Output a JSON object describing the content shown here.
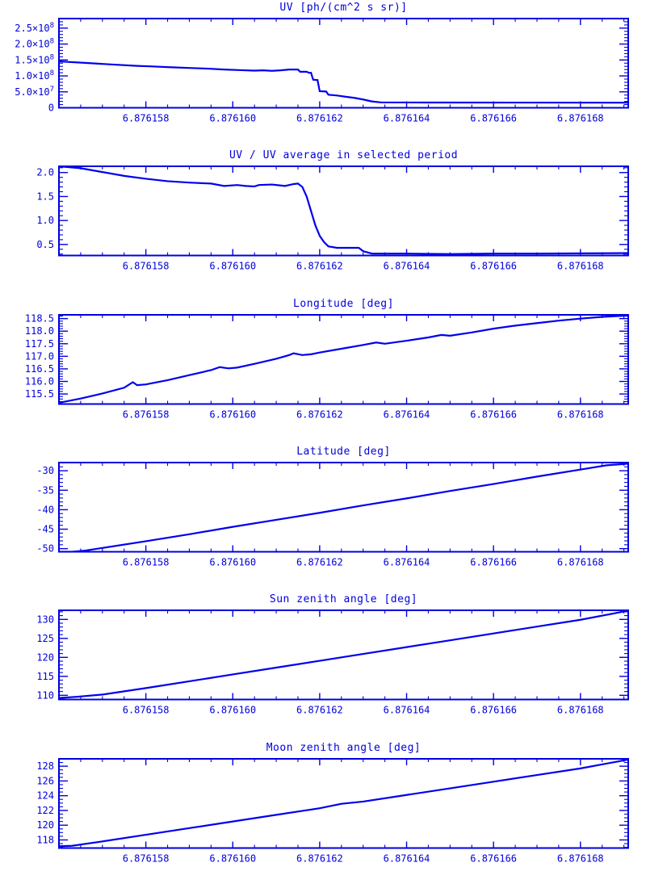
{
  "page": {
    "background": "#ffffff"
  },
  "colors": {
    "axis": "#0000dd",
    "line": "#0000ee",
    "text": "#0000dd"
  },
  "chart_data": [
    {
      "type": "line",
      "title": "UV [ph/(cm^2 s sr)]",
      "x_range": [
        6.876156,
        6.8761691
      ],
      "y_range": [
        0,
        280000000
      ],
      "x_ticks": {
        "values": [
          6.876158,
          6.87616,
          6.876162,
          6.876164,
          6.876166,
          6.876168
        ],
        "labels": [
          "6.876158",
          "6.876160",
          "6.876162",
          "6.876164",
          "6.876166",
          "6.876168"
        ],
        "minor_step": 5e-07
      },
      "y_ticks": {
        "values": [
          0,
          50000000.0,
          100000000.0,
          150000000.0,
          200000000.0,
          250000000.0
        ],
        "labels": [
          "0",
          "5.0×10^7",
          "1.0×10^8",
          "1.5×10^8",
          "2.0×10^8",
          "2.5×10^8"
        ],
        "minor_step": 10000000.0
      },
      "points": [
        [
          6.876156,
          145500000.0
        ],
        [
          6.8761566,
          141000000.0
        ],
        [
          6.8761572,
          136000000.0
        ],
        [
          6.8761578,
          131500000.0
        ],
        [
          6.8761581,
          130000000.0
        ],
        [
          6.8761586,
          127000000.0
        ],
        [
          6.876159,
          125000000.0
        ],
        [
          6.8761594,
          123000000.0
        ],
        [
          6.8761598,
          120000000.0
        ],
        [
          6.8761602,
          118000000.0
        ],
        [
          6.8761605,
          116500000.0
        ],
        [
          6.8761607,
          117500000.0
        ],
        [
          6.8761609,
          116000000.0
        ],
        [
          6.8761611,
          117500000.0
        ],
        [
          6.8761613,
          120000000.0
        ],
        [
          6.8761615,
          120000000.0
        ],
        [
          6.87616155,
          113000000.0
        ],
        [
          6.8761617,
          113000000.0
        ],
        [
          6.87616175,
          110000000.0
        ],
        [
          6.8761618,
          110000000.0
        ],
        [
          6.87616185,
          88000000.0
        ],
        [
          6.87616195,
          87000000.0
        ],
        [
          6.876162,
          52000000.0
        ],
        [
          6.87616215,
          51000000.0
        ],
        [
          6.8761622,
          41000000.0
        ],
        [
          6.8761624,
          38500000.0
        ],
        [
          6.8761626,
          34500000.0
        ],
        [
          6.8761628,
          31000000.0
        ],
        [
          6.876163,
          26000000.0
        ],
        [
          6.8761632,
          20000000.0
        ],
        [
          6.8761634,
          17000000.0
        ],
        [
          6.8761645,
          16500000.0
        ],
        [
          6.8761691,
          16000000.0
        ]
      ]
    },
    {
      "type": "line",
      "title": "UV / UV average in selected period",
      "x_range": [
        6.876156,
        6.8761691
      ],
      "y_range": [
        0.27,
        2.13
      ],
      "x_ticks": {
        "values": [
          6.876158,
          6.87616,
          6.876162,
          6.876164,
          6.876166,
          6.876168
        ],
        "labels": [
          "6.876158",
          "6.876160",
          "6.876162",
          "6.876164",
          "6.876166",
          "6.876168"
        ],
        "minor_step": 5e-07
      },
      "y_ticks": {
        "values": [
          0.5,
          1.0,
          1.5,
          2.0
        ],
        "labels": [
          "0.5",
          "1.0",
          "1.5",
          "2.0"
        ],
        "minor_step": 0.1
      },
      "points": [
        [
          6.876156,
          2.13
        ],
        [
          6.8761565,
          2.09
        ],
        [
          6.876157,
          2.01
        ],
        [
          6.8761575,
          1.93
        ],
        [
          6.876158,
          1.87
        ],
        [
          6.8761585,
          1.82
        ],
        [
          6.876159,
          1.79
        ],
        [
          6.8761595,
          1.77
        ],
        [
          6.8761598,
          1.72
        ],
        [
          6.8761601,
          1.74
        ],
        [
          6.8761603,
          1.72
        ],
        [
          6.8761605,
          1.71
        ],
        [
          6.8761606,
          1.74
        ],
        [
          6.8761609,
          1.75
        ],
        [
          6.8761611,
          1.73
        ],
        [
          6.8761612,
          1.72
        ],
        [
          6.8761613,
          1.74
        ],
        [
          6.8761614,
          1.76
        ],
        [
          6.8761615,
          1.77
        ],
        [
          6.8761616,
          1.7
        ],
        [
          6.8761617,
          1.5
        ],
        [
          6.8761618,
          1.2
        ],
        [
          6.8761619,
          0.9
        ],
        [
          6.876162,
          0.68
        ],
        [
          6.8761621,
          0.55
        ],
        [
          6.8761622,
          0.46
        ],
        [
          6.8761624,
          0.43
        ],
        [
          6.8761629,
          0.43
        ],
        [
          6.876163,
          0.36
        ],
        [
          6.8761632,
          0.31
        ],
        [
          6.876164,
          0.31
        ],
        [
          6.876165,
          0.3
        ],
        [
          6.876166,
          0.31
        ],
        [
          6.876167,
          0.31
        ],
        [
          6.8761691,
          0.32
        ]
      ]
    },
    {
      "type": "line",
      "title": "Longitude [deg]",
      "x_range": [
        6.876156,
        6.8761691
      ],
      "y_range": [
        115.1,
        118.65
      ],
      "x_ticks": {
        "values": [
          6.876158,
          6.87616,
          6.876162,
          6.876164,
          6.876166,
          6.876168
        ],
        "labels": [
          "6.876158",
          "6.876160",
          "6.876162",
          "6.876164",
          "6.876166",
          "6.876168"
        ],
        "minor_step": 5e-07
      },
      "y_ticks": {
        "values": [
          115.5,
          116.0,
          116.5,
          117.0,
          117.5,
          118.0,
          118.5
        ],
        "labels": [
          "115.5",
          "116.0",
          "116.5",
          "117.0",
          "117.5",
          "118.0",
          "118.5"
        ],
        "minor_step": 0.1
      },
      "points": [
        [
          6.876156,
          115.15
        ],
        [
          6.8761565,
          115.32
        ],
        [
          6.876157,
          115.52
        ],
        [
          6.8761575,
          115.75
        ],
        [
          6.8761577,
          115.97
        ],
        [
          6.8761578,
          115.85
        ],
        [
          6.876158,
          115.88
        ],
        [
          6.8761585,
          116.05
        ],
        [
          6.876159,
          116.25
        ],
        [
          6.8761595,
          116.45
        ],
        [
          6.8761597,
          116.57
        ],
        [
          6.8761599,
          116.52
        ],
        [
          6.8761601,
          116.55
        ],
        [
          6.8761605,
          116.7
        ],
        [
          6.876161,
          116.9
        ],
        [
          6.8761613,
          117.05
        ],
        [
          6.8761614,
          117.12
        ],
        [
          6.8761616,
          117.05
        ],
        [
          6.8761618,
          117.08
        ],
        [
          6.876162,
          117.15
        ],
        [
          6.8761625,
          117.3
        ],
        [
          6.876163,
          117.45
        ],
        [
          6.8761633,
          117.55
        ],
        [
          6.8761635,
          117.5
        ],
        [
          6.876164,
          117.62
        ],
        [
          6.8761645,
          117.75
        ],
        [
          6.8761648,
          117.85
        ],
        [
          6.876165,
          117.82
        ],
        [
          6.8761655,
          117.95
        ],
        [
          6.876166,
          118.1
        ],
        [
          6.8761665,
          118.22
        ],
        [
          6.876167,
          118.32
        ],
        [
          6.8761675,
          118.42
        ],
        [
          6.876168,
          118.5
        ],
        [
          6.8761685,
          118.57
        ],
        [
          6.8761691,
          118.62
        ]
      ]
    },
    {
      "type": "line",
      "title": "Latitude [deg]",
      "x_range": [
        6.876156,
        6.8761691
      ],
      "y_range": [
        -50.8,
        -27.9
      ],
      "x_ticks": {
        "values": [
          6.876158,
          6.87616,
          6.876162,
          6.876164,
          6.876166,
          6.876168
        ],
        "labels": [
          "6.876158",
          "6.876160",
          "6.876162",
          "6.876164",
          "6.876166",
          "6.876168"
        ],
        "minor_step": 5e-07
      },
      "y_ticks": {
        "values": [
          -50,
          -45,
          -40,
          -35,
          -30
        ],
        "labels": [
          "-50",
          "-45",
          "-40",
          "-35",
          "-30"
        ],
        "minor_step": 1
      },
      "points": [
        [
          6.876156,
          -50.8
        ],
        [
          6.8761563,
          -50.8
        ],
        [
          6.8761566,
          -50.5
        ],
        [
          6.876158,
          -48.1
        ],
        [
          6.876159,
          -46.3
        ],
        [
          6.87616,
          -44.4
        ],
        [
          6.876161,
          -42.6
        ],
        [
          6.876162,
          -40.8
        ],
        [
          6.876163,
          -38.9
        ],
        [
          6.876164,
          -37.1
        ],
        [
          6.876165,
          -35.2
        ],
        [
          6.876166,
          -33.4
        ],
        [
          6.876167,
          -31.5
        ],
        [
          6.876168,
          -29.7
        ],
        [
          6.8761686,
          -28.6
        ],
        [
          6.8761691,
          -28.2
        ]
      ]
    },
    {
      "type": "line",
      "title": "Sun zenith angle [deg]",
      "x_range": [
        6.876156,
        6.8761691
      ],
      "y_range": [
        108.9,
        132.4
      ],
      "x_ticks": {
        "values": [
          6.876158,
          6.87616,
          6.876162,
          6.876164,
          6.876166,
          6.876168
        ],
        "labels": [
          "6.876158",
          "6.876160",
          "6.876162",
          "6.876164",
          "6.876166",
          "6.876168"
        ],
        "minor_step": 5e-07
      },
      "y_ticks": {
        "values": [
          110,
          115,
          120,
          125,
          130
        ],
        "labels": [
          "110",
          "115",
          "120",
          "125",
          "130"
        ],
        "minor_step": 1
      },
      "points": [
        [
          6.876156,
          109.3
        ],
        [
          6.8761564,
          109.6
        ],
        [
          6.876157,
          110.2
        ],
        [
          6.876158,
          111.9
        ],
        [
          6.876159,
          113.7
        ],
        [
          6.87616,
          115.5
        ],
        [
          6.876161,
          117.3
        ],
        [
          6.876162,
          119.1
        ],
        [
          6.876163,
          120.9
        ],
        [
          6.876164,
          122.7
        ],
        [
          6.876165,
          124.5
        ],
        [
          6.876166,
          126.3
        ],
        [
          6.876167,
          128.1
        ],
        [
          6.876168,
          129.9
        ],
        [
          6.8761691,
          132.3
        ]
      ]
    },
    {
      "type": "line",
      "title": "Moon zenith angle [deg]",
      "x_range": [
        6.876156,
        6.8761691
      ],
      "y_range": [
        116.9,
        129.0
      ],
      "x_ticks": {
        "values": [
          6.876158,
          6.87616,
          6.876162,
          6.876164,
          6.876166,
          6.876168
        ],
        "labels": [
          "6.876158",
          "6.876160",
          "6.876162",
          "6.876164",
          "6.876166",
          "6.876168"
        ],
        "minor_step": 5e-07
      },
      "y_ticks": {
        "values": [
          118,
          120,
          122,
          124,
          126,
          128
        ],
        "labels": [
          "118",
          "120",
          "122",
          "124",
          "126",
          "128"
        ],
        "minor_step": 0.5
      },
      "points": [
        [
          6.876156,
          117.15
        ],
        [
          6.8761563,
          117.2
        ],
        [
          6.876157,
          117.8
        ],
        [
          6.876158,
          118.7
        ],
        [
          6.876159,
          119.6
        ],
        [
          6.87616,
          120.5
        ],
        [
          6.876161,
          121.4
        ],
        [
          6.876162,
          122.3
        ],
        [
          6.8761625,
          122.9
        ],
        [
          6.876163,
          123.2
        ],
        [
          6.876164,
          124.1
        ],
        [
          6.876165,
          125.0
        ],
        [
          6.876166,
          125.9
        ],
        [
          6.876167,
          126.8
        ],
        [
          6.876168,
          127.7
        ],
        [
          6.8761691,
          128.9
        ]
      ]
    }
  ]
}
